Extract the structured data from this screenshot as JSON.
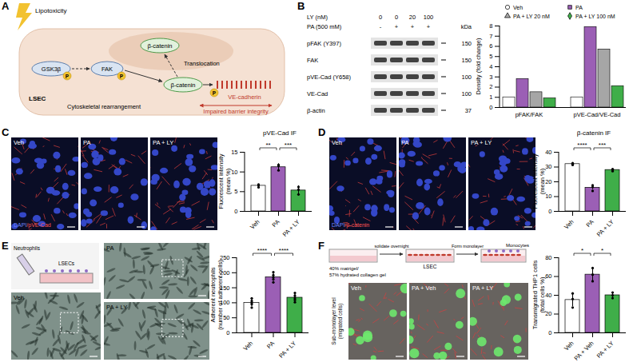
{
  "panel_labels": [
    "A",
    "B",
    "C",
    "D",
    "E",
    "F"
  ],
  "diagram_A": {
    "stress": "Lipotoxicity",
    "gsk": "GSK3β",
    "fak": "FAK",
    "phospho": "P",
    "nuclear_catenin": "β-catenin",
    "translocation": "Translocation",
    "catenin": "β-catenin",
    "vecad": "VE-cadherin",
    "cell": "LSEC",
    "cytoskeleton": "Cytoskeletal rearrangement",
    "outcome": "Impaired barrier integrity"
  },
  "blot_B": {
    "kda_label": "kDa",
    "treatments": [
      {
        "label": "LY (nM)",
        "lanes": [
          "0",
          "0",
          "20",
          "100"
        ]
      },
      {
        "label": "PA (500 mM)",
        "lanes": [
          "-",
          "+",
          "+",
          "+"
        ]
      }
    ],
    "rows": [
      {
        "label": "pFAK (Y397)",
        "kda": 150
      },
      {
        "label": "FAK",
        "kda": 150
      },
      {
        "label": "pVE-Cad (Y658)",
        "kda": 100
      },
      {
        "label": "VE-Cad",
        "kda": 100
      },
      {
        "label": "β-actin",
        "kda": 37
      }
    ]
  },
  "images_C": {
    "panels": [
      "Veh",
      "PA",
      "PA + LY"
    ],
    "stain": [
      "DAPI",
      "/pVE-Cad"
    ]
  },
  "images_D": {
    "panels": [
      "Veh",
      "PA",
      "PA + LY"
    ],
    "stain": [
      "DAPI",
      "/β-catenin"
    ]
  },
  "images_E": {
    "schematic": [
      "Neutrophils",
      "LSECs"
    ],
    "panels": [
      "Veh",
      "PA",
      "PA + LY"
    ]
  },
  "schematic_F": {
    "gel": [
      "40% matrigel/",
      "57% hydrated collagen gel"
    ],
    "step1": "solidate overnight",
    "cells": "LSEC",
    "step2": "Form monolayer",
    "monocytes": "Monocytes"
  },
  "images_F": {
    "side_label": [
      "Sub-monolayer level",
      "(migrated cells)"
    ],
    "panels": [
      "Veh",
      "PA + Veh",
      "PA + LY"
    ]
  },
  "chart_data": [
    {
      "type": "bar",
      "ylabel": [
        "Density (fold change)"
      ],
      "categories": [
        "pFAK/FAK",
        "pVE-Cad/VE-Cad"
      ],
      "series": [
        {
          "name": "Veh",
          "color": "#ffffff",
          "marker": "circle",
          "values": [
            1,
            1
          ]
        },
        {
          "name": "PA",
          "color": "#9b5fb5",
          "marker": "square",
          "values": [
            2.8,
            7.9
          ]
        },
        {
          "name": "PA + LY 20 nM",
          "color": "#a6a6a6",
          "marker": "triangle",
          "values": [
            1.5,
            5.7
          ]
        },
        {
          "name": "PA + LY 100 nM",
          "color": "#3fae49",
          "marker": "diamond",
          "values": [
            0.9,
            2.1
          ]
        }
      ],
      "ylim": [
        0,
        8
      ],
      "yticks": [
        0,
        1,
        2,
        3,
        4,
        5,
        6,
        7,
        8
      ],
      "legend": "top-right",
      "grid": false
    },
    {
      "type": "bar",
      "title": "pVE-Cad IF",
      "ylabel": [
        "Fluorescent intensity",
        "(mean %)"
      ],
      "categories": [
        "Veh",
        "PA",
        "PA + LY"
      ],
      "values": [
        6.5,
        11.2,
        5.3
      ],
      "errors": [
        0.4,
        0.9,
        1.2
      ],
      "points": [
        [
          6.1,
          6.8,
          6.6
        ],
        [
          10.4,
          11.5,
          11.8
        ],
        [
          4.3,
          5.5,
          6.2
        ]
      ],
      "colors": [
        "#ffffff",
        "#9b5fb5",
        "#3fae49"
      ],
      "significance": [
        {
          "from": "Veh",
          "to": "PA",
          "label": "**"
        },
        {
          "from": "PA",
          "to": "PA + LY",
          "label": "***"
        }
      ],
      "ylim": [
        0,
        15
      ],
      "yticks": [
        0,
        5,
        10,
        15
      ],
      "grid": false
    },
    {
      "type": "bar",
      "title": "β-catenin IF",
      "ylabel": [
        "Fluorescent intensity",
        "(mean %)"
      ],
      "categories": [
        "Veh",
        "PA",
        "PA + LY"
      ],
      "values": [
        32,
        16,
        28
      ],
      "errors": [
        0.4,
        1.2,
        0.4
      ],
      "points": [
        [
          31.4,
          32,
          32.6
        ],
        [
          13.8,
          16.5,
          17.7
        ],
        [
          27.2,
          28.2,
          28.6
        ]
      ],
      "colors": [
        "#ffffff",
        "#9b5fb5",
        "#3fae49"
      ],
      "significance": [
        {
          "from": "Veh",
          "to": "PA",
          "label": "****"
        },
        {
          "from": "PA",
          "to": "PA + LY",
          "label": "***"
        }
      ],
      "ylim": [
        0,
        40
      ],
      "yticks": [
        0,
        10,
        20,
        30,
        40
      ],
      "grid": false
    },
    {
      "type": "bar",
      "ylabel": [
        "Adherent neutrophils",
        "(number of adherent cells)"
      ],
      "categories": [
        "Veh",
        "PA",
        "PA + LY"
      ],
      "values": [
        100,
        185,
        117
      ],
      "errors": [
        12,
        13,
        12
      ],
      "points": [
        [
          84,
          95,
          100,
          106,
          115
        ],
        [
          168,
          178,
          185,
          192,
          202
        ],
        [
          102,
          110,
          116,
          124,
          133
        ]
      ],
      "colors": [
        "#ffffff",
        "#9b5fb5",
        "#3fae49"
      ],
      "significance": [
        {
          "from": "Veh",
          "to": "PA",
          "label": "****"
        },
        {
          "from": "PA",
          "to": "PA + LY",
          "label": "****"
        }
      ],
      "ylim": [
        0,
        250
      ],
      "yticks": [
        0,
        50,
        100,
        150,
        200,
        250
      ],
      "grid": false
    },
    {
      "type": "bar",
      "ylabel": [
        "Transmigrated THP1 cells",
        "(total cells %)"
      ],
      "categories": [
        "Veh",
        "PA + Veh",
        "PA + LY"
      ],
      "values": [
        35,
        62,
        40
      ],
      "errors": [
        7,
        7,
        3
      ],
      "points": [
        [
          27,
          36,
          42
        ],
        [
          55,
          62,
          69
        ],
        [
          37,
          40,
          43
        ]
      ],
      "colors": [
        "#ffffff",
        "#9b5fb5",
        "#3fae49"
      ],
      "significance": [
        {
          "from": "Veh",
          "to": "PA + Veh",
          "label": "*"
        },
        {
          "from": "PA + Veh",
          "to": "PA + LY",
          "label": "*"
        }
      ],
      "ylim": [
        0,
        80
      ],
      "yticks": [
        0,
        20,
        40,
        60,
        80
      ],
      "grid": false
    }
  ]
}
